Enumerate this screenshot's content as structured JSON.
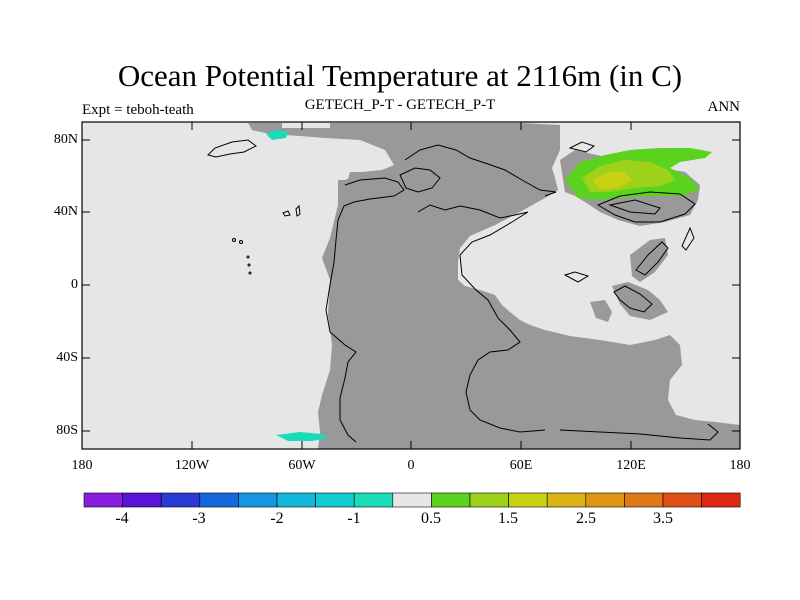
{
  "title": "Ocean Potential Temperature at 2116m (in C)",
  "subtitle_left": "Expt = teboh-teath",
  "subtitle_center": "GETECH_P-T - GETECH_P-T",
  "subtitle_right": "ANN",
  "y_axis_labels": [
    "80N",
    "40N",
    "0",
    "40S",
    "80S"
  ],
  "x_axis_labels": [
    "180",
    "120W",
    "60W",
    "0",
    "60E",
    "120E",
    "180"
  ],
  "colorbar": {
    "colors": [
      "#8a1ee0",
      "#5a14d8",
      "#2a3ad4",
      "#1468dc",
      "#1496e0",
      "#12b8dc",
      "#12ccd0",
      "#1cdcb8",
      "#e6e6e6",
      "#5ad21e",
      "#9ed21a",
      "#c8d214",
      "#dcb414",
      "#e09614",
      "#e07814",
      "#e05014",
      "#dc2814"
    ],
    "labels": [
      "-4",
      "-3",
      "-2",
      "-1",
      "0.5",
      "1.5",
      "2.5",
      "3.5"
    ]
  },
  "colors": {
    "ocean": "#e6e6e6",
    "land": "#999999",
    "positive_low": "#5ad21e",
    "positive_mid": "#9ed21a",
    "positive_high": "#c8d214",
    "negative": "#1cdcb8"
  }
}
